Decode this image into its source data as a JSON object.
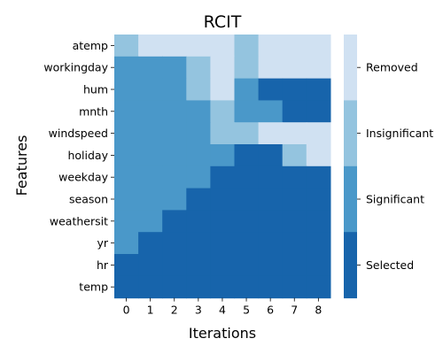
{
  "chart_data": {
    "type": "heatmap",
    "title": "RCIT",
    "xlabel": "Iterations",
    "ylabel": "Features",
    "x": [
      0,
      1,
      2,
      3,
      4,
      5,
      6,
      7,
      8
    ],
    "rows": [
      "atemp",
      "workingday",
      "hum",
      "mnth",
      "windspeed",
      "holiday",
      "weekday",
      "season",
      "weathersit",
      "yr",
      "hr",
      "temp"
    ],
    "values": [
      [
        2,
        3,
        3,
        3,
        3,
        2,
        3,
        3,
        3
      ],
      [
        1,
        1,
        1,
        2,
        3,
        2,
        3,
        3,
        3
      ],
      [
        1,
        1,
        1,
        2,
        3,
        1,
        0,
        0,
        0
      ],
      [
        1,
        1,
        1,
        1,
        2,
        1,
        1,
        0,
        0
      ],
      [
        1,
        1,
        1,
        1,
        2,
        2,
        3,
        3,
        3
      ],
      [
        1,
        1,
        1,
        1,
        1,
        0,
        0,
        2,
        3
      ],
      [
        1,
        1,
        1,
        1,
        0,
        0,
        0,
        0,
        0
      ],
      [
        1,
        1,
        1,
        0,
        0,
        0,
        0,
        0,
        0
      ],
      [
        1,
        1,
        0,
        0,
        0,
        0,
        0,
        0,
        0
      ],
      [
        1,
        0,
        0,
        0,
        0,
        0,
        0,
        0,
        0
      ],
      [
        0,
        0,
        0,
        0,
        0,
        0,
        0,
        0,
        0
      ],
      [
        0,
        0,
        0,
        0,
        0,
        0,
        0,
        0,
        0
      ]
    ],
    "legend": {
      "placement": "right",
      "categories": [
        {
          "code": 3,
          "label": "Removed",
          "color": "#d0e1f2"
        },
        {
          "code": 2,
          "label": "Insignificant",
          "color": "#94c4df"
        },
        {
          "code": 1,
          "label": "Significant",
          "color": "#4a98c9"
        },
        {
          "code": 0,
          "label": "Selected",
          "color": "#1764ab"
        }
      ]
    }
  }
}
